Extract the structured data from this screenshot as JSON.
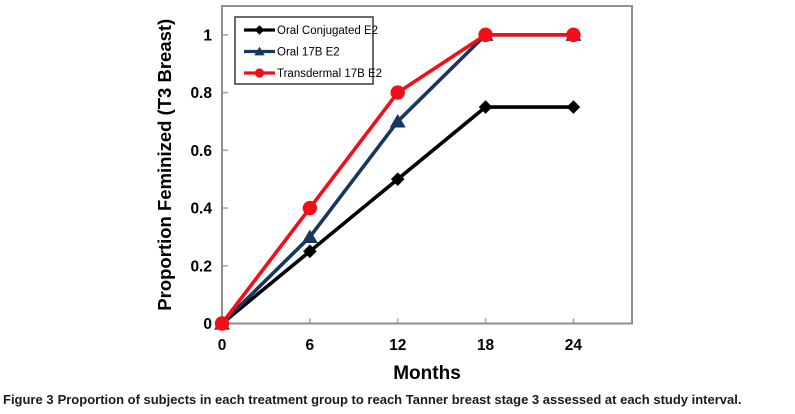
{
  "chart_data": {
    "type": "line",
    "title": "",
    "xlabel": "Months",
    "ylabel": "Proportion Feminized (T3 Breast)",
    "x": [
      0,
      6,
      12,
      18,
      24
    ],
    "xticks": [
      0,
      6,
      12,
      18,
      24
    ],
    "yticks": [
      0,
      0.2,
      0.4,
      0.6,
      0.8,
      1
    ],
    "xlim": [
      0,
      28
    ],
    "ylim": [
      0,
      1.1
    ],
    "grid": false,
    "legend_position": "top-left-inside",
    "series": [
      {
        "name": "Oral Conjugated E2",
        "color": "#000000",
        "marker": "diamond",
        "values": [
          0,
          0.25,
          0.5,
          0.75,
          0.75
        ]
      },
      {
        "name": "Oral 17B E2",
        "color": "#17375e",
        "marker": "triangle",
        "values": [
          0,
          0.3,
          0.7,
          1,
          1
        ]
      },
      {
        "name": "Transdermal 17B E2",
        "color": "#f20d19",
        "marker": "circle",
        "values": [
          0,
          0.4,
          0.8,
          1,
          1
        ]
      }
    ],
    "axis_color": "#8f8f8f",
    "tick_color": "#a8a8a8",
    "text_color": "#000000",
    "legend_border_color": "#2a2a2a"
  },
  "caption": {
    "label": "Figure 3",
    "text": "Proportion of subjects in each treatment group to reach Tanner breast stage 3 assessed at each study interval."
  }
}
